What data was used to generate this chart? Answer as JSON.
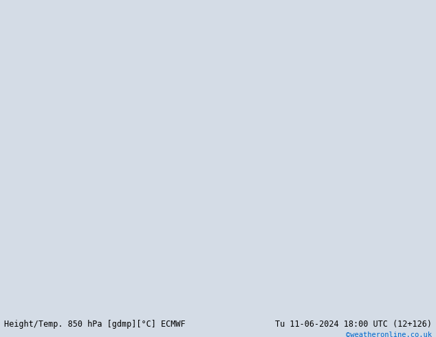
{
  "title_left": "Height/Temp. 850 hPa [gdmp][°C] ECMWF",
  "title_right": "Tu 11-06-2024 18:00 UTC (12+126)",
  "watermark": "©weatheronline.co.uk",
  "watermark_color": "#0066cc",
  "bg_ocean": "#d4dce6",
  "bg_land": "#c8c8c8",
  "aus_fill": "#c8f0a0",
  "aus_edge": "#888888",
  "orange_color": "#e08000",
  "red_color": "#cc0000",
  "green_color": "#44bb44",
  "lime_color": "#88cc44",
  "cyan_color": "#00bbbb",
  "blue_color": "#4488ff",
  "black_color": "#000000",
  "white": "#ffffff",
  "title_fontsize": 8.5,
  "watermark_fontsize": 7.5
}
